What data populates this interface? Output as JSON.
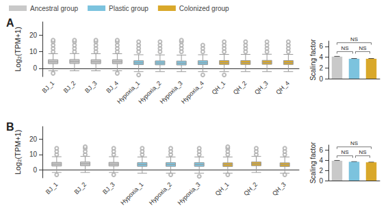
{
  "chart_data": [
    {
      "type": "boxplot",
      "panel": "A",
      "y_label": "Log₂(TPM+1)",
      "categories": [
        "BJ_1",
        "BJ_2",
        "BJ_3",
        "BJ_4",
        "Hypoxia_1",
        "Hypoxia_2",
        "Hypoxia_3",
        "Hypoxia_4",
        "QH_1",
        "QH_2",
        "QH_3",
        "QH_4"
      ],
      "ylim": [
        -5,
        28
      ],
      "yticks": [
        0,
        10,
        20
      ],
      "grid": false,
      "series": [
        {
          "name": "Ancestral group",
          "color": "#c9c9c9",
          "values": [
            [
              -1.5,
              2.8,
              4.0,
              5.2,
              8.8
            ],
            [
              -1.5,
              2.9,
              4.1,
              5.3,
              8.9
            ],
            [
              -1.5,
              2.8,
              4.0,
              5.2,
              8.8
            ],
            [
              -1.5,
              2.8,
              4.0,
              5.2,
              8.8
            ],
            null,
            null,
            null,
            null,
            null,
            null,
            null,
            null
          ],
          "outliers": [
            [
              10,
              12,
              14,
              16,
              17,
              -3
            ],
            [
              10,
              12,
              14,
              16,
              17
            ],
            [
              10,
              12,
              14,
              16,
              17
            ],
            [
              10,
              12,
              14,
              16,
              17,
              -3
            ],
            null,
            null,
            null,
            null,
            null,
            null,
            null,
            null
          ]
        },
        {
          "name": "Plastic group",
          "color": "#7cc3de",
          "values": [
            null,
            null,
            null,
            null,
            [
              -2,
              2.2,
              3.3,
              4.6,
              8.2
            ],
            [
              -2,
              2.1,
              3.2,
              4.5,
              8.1
            ],
            [
              -2,
              2.0,
              3.1,
              4.4,
              8.0
            ],
            [
              -2,
              2.2,
              3.3,
              4.6,
              8.2
            ],
            null,
            null,
            null,
            null
          ],
          "outliers": [
            null,
            null,
            null,
            null,
            [
              10,
              12,
              14,
              16,
              -4
            ],
            [
              10,
              12,
              14,
              16
            ],
            [
              10,
              12,
              14,
              16,
              17
            ],
            [
              10,
              12,
              14,
              -4
            ],
            null,
            null,
            null,
            null
          ]
        },
        {
          "name": "Colonized group",
          "color": "#d9a82a",
          "values": [
            null,
            null,
            null,
            null,
            null,
            null,
            null,
            null,
            [
              -2,
              2.3,
              3.4,
              4.7,
              8.4
            ],
            [
              -2,
              2.3,
              3.4,
              4.7,
              8.4
            ],
            [
              -2,
              2.4,
              3.5,
              4.8,
              8.5
            ],
            [
              -2,
              2.3,
              3.4,
              4.7,
              8.4
            ]
          ],
          "outliers": [
            null,
            null,
            null,
            null,
            null,
            null,
            null,
            null,
            [
              10,
              12,
              14,
              16,
              -4
            ],
            [
              10,
              12,
              14,
              16
            ],
            [
              10,
              12,
              14,
              16
            ],
            [
              10,
              12,
              14,
              16
            ]
          ]
        }
      ]
    },
    {
      "type": "bar",
      "y_label": "Scaling factor",
      "categories": [
        null,
        null,
        null
      ],
      "values": [
        4.1,
        3.7,
        3.7
      ],
      "errors": [
        0.05,
        0.04,
        0.04
      ],
      "colors": [
        "#c9c9c9",
        "#7cc3de",
        "#d9a82a"
      ],
      "ylim": [
        0,
        7
      ],
      "yticks": [
        0,
        2,
        4,
        6
      ],
      "grid": false,
      "annotations": [
        {
          "text": "NS",
          "from": 0,
          "to": 1
        },
        {
          "text": "NS",
          "from": 1,
          "to": 2
        },
        {
          "text": "NS",
          "from": 0,
          "to": 2
        }
      ]
    },
    {
      "type": "boxplot",
      "panel": "B",
      "y_label": "Log₂(TPM+1)",
      "categories": [
        "BJ_1",
        "BJ_2",
        "BJ_3",
        "Hypoxia_1",
        "Hypoxia_2",
        "Hypoxia_3",
        "QH_1",
        "QH_2",
        "QH_3"
      ],
      "ylim": [
        -5,
        28
      ],
      "yticks": [
        0,
        10,
        20
      ],
      "grid": false,
      "series": [
        {
          "name": "Ancestral group",
          "color": "#c9c9c9",
          "values": [
            [
              -1.5,
              2.6,
              3.8,
              5.0,
              8.6
            ],
            [
              -1.5,
              2.8,
              4.0,
              5.2,
              8.8
            ],
            [
              -1.5,
              2.6,
              3.8,
              5.0,
              8.6
            ],
            null,
            null,
            null,
            null,
            null,
            null
          ],
          "outliers": [
            [
              10,
              12,
              14,
              -3
            ],
            [
              10,
              12,
              14,
              15
            ],
            [
              10,
              12,
              14,
              -3
            ],
            null,
            null,
            null,
            null,
            null,
            null
          ]
        },
        {
          "name": "Plastic group",
          "color": "#7cc3de",
          "values": [
            null,
            null,
            null,
            [
              -2,
              2.4,
              3.6,
              4.8,
              8.4
            ],
            [
              -2,
              2.4,
              3.6,
              4.8,
              8.4
            ],
            [
              -2,
              2.4,
              3.6,
              4.8,
              8.4
            ],
            null,
            null,
            null
          ],
          "outliers": [
            null,
            null,
            null,
            [
              10,
              12,
              14
            ],
            [
              10,
              12,
              14,
              -3
            ],
            [
              10,
              12,
              14,
              -4
            ],
            null,
            null,
            null
          ]
        },
        {
          "name": "Colonized group",
          "color": "#d9a82a",
          "values": [
            null,
            null,
            null,
            null,
            null,
            null,
            [
              -2,
              2.3,
              3.5,
              4.7,
              8.4
            ],
            [
              -1.5,
              2.8,
              4.0,
              5.2,
              8.8
            ],
            [
              -2,
              2.3,
              3.5,
              4.7,
              8.4
            ]
          ],
          "outliers": [
            null,
            null,
            null,
            null,
            null,
            null,
            [
              10,
              12,
              14,
              15,
              -3
            ],
            [
              10,
              12,
              14
            ],
            [
              10,
              12,
              14,
              -3
            ]
          ]
        }
      ]
    },
    {
      "type": "bar",
      "y_label": "Scaling factor",
      "categories": [
        null,
        null,
        null
      ],
      "values": [
        3.9,
        3.7,
        3.6
      ],
      "errors": [
        0.04,
        0.03,
        0.03
      ],
      "colors": [
        "#c9c9c9",
        "#7cc3de",
        "#d9a82a"
      ],
      "ylim": [
        0,
        7
      ],
      "yticks": [
        0,
        2,
        4,
        6
      ],
      "grid": false,
      "annotations": [
        {
          "text": "NS",
          "from": 0,
          "to": 1
        },
        {
          "text": "NS",
          "from": 1,
          "to": 2
        },
        {
          "text": "NS",
          "from": 0,
          "to": 2
        }
      ]
    }
  ]
}
